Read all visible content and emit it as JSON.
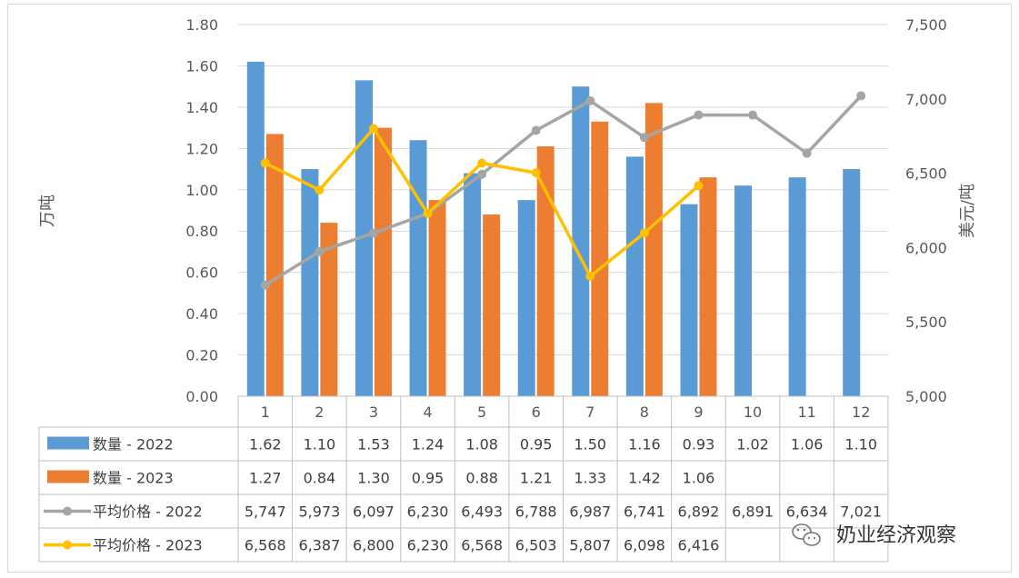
{
  "chart_data": {
    "type": "bar",
    "categories": [
      "1",
      "2",
      "3",
      "4",
      "5",
      "6",
      "7",
      "8",
      "9",
      "10",
      "11",
      "12"
    ],
    "ylabel_left": "万吨",
    "ylabel_right": "美元/吨",
    "ylim_left": [
      0,
      1.8
    ],
    "ylim_right": [
      5000,
      7500
    ],
    "yticks_left": [
      "0.00",
      "0.20",
      "0.40",
      "0.60",
      "0.80",
      "1.00",
      "1.20",
      "1.40",
      "1.60",
      "1.80"
    ],
    "yticks_right": [
      "5,000",
      "5,500",
      "6,000",
      "6,500",
      "7,000",
      "7,500"
    ],
    "grid": true,
    "legend_placement": "data-table",
    "series": [
      {
        "name": "数量 - 2022",
        "type": "bar",
        "axis": "left",
        "color": "#5b9bd5",
        "values": [
          1.62,
          1.1,
          1.53,
          1.24,
          1.08,
          0.95,
          1.5,
          1.16,
          0.93,
          1.02,
          1.06,
          1.1
        ],
        "labels": [
          "1.62",
          "1.10",
          "1.53",
          "1.24",
          "1.08",
          "0.95",
          "1.50",
          "1.16",
          "0.93",
          "1.02",
          "1.06",
          "1.10"
        ]
      },
      {
        "name": "数量 - 2023",
        "type": "bar",
        "axis": "left",
        "color": "#ed7d31",
        "values": [
          1.27,
          0.84,
          1.3,
          0.95,
          0.88,
          1.21,
          1.33,
          1.42,
          1.06,
          null,
          null,
          null
        ],
        "labels": [
          "1.27",
          "0.84",
          "1.30",
          "0.95",
          "0.88",
          "1.21",
          "1.33",
          "1.42",
          "1.06",
          "",
          "",
          ""
        ]
      },
      {
        "name": "平均价格 - 2022",
        "type": "line",
        "axis": "right",
        "color": "#a5a5a5",
        "values": [
          5747,
          5973,
          6097,
          6230,
          6493,
          6788,
          6987,
          6741,
          6892,
          6891,
          6634,
          7021
        ],
        "labels": [
          "5,747",
          "5,973",
          "6,097",
          "6,230",
          "6,493",
          "6,788",
          "6,987",
          "6,741",
          "6,892",
          "6,891",
          "6,634",
          "7,021"
        ]
      },
      {
        "name": "平均价格 - 2023",
        "type": "line",
        "axis": "right",
        "color": "#ffc000",
        "values": [
          6568,
          6387,
          6800,
          6230,
          6568,
          6503,
          5807,
          6098,
          6416,
          null,
          null,
          null
        ],
        "labels": [
          "6,568",
          "6,387",
          "6,800",
          "6,230",
          "6,568",
          "6,503",
          "5,807",
          "6,098",
          "6,416",
          "",
          "",
          ""
        ]
      }
    ]
  },
  "watermark": {
    "text": "奶业经济观察",
    "icon": "wechat-icon"
  }
}
